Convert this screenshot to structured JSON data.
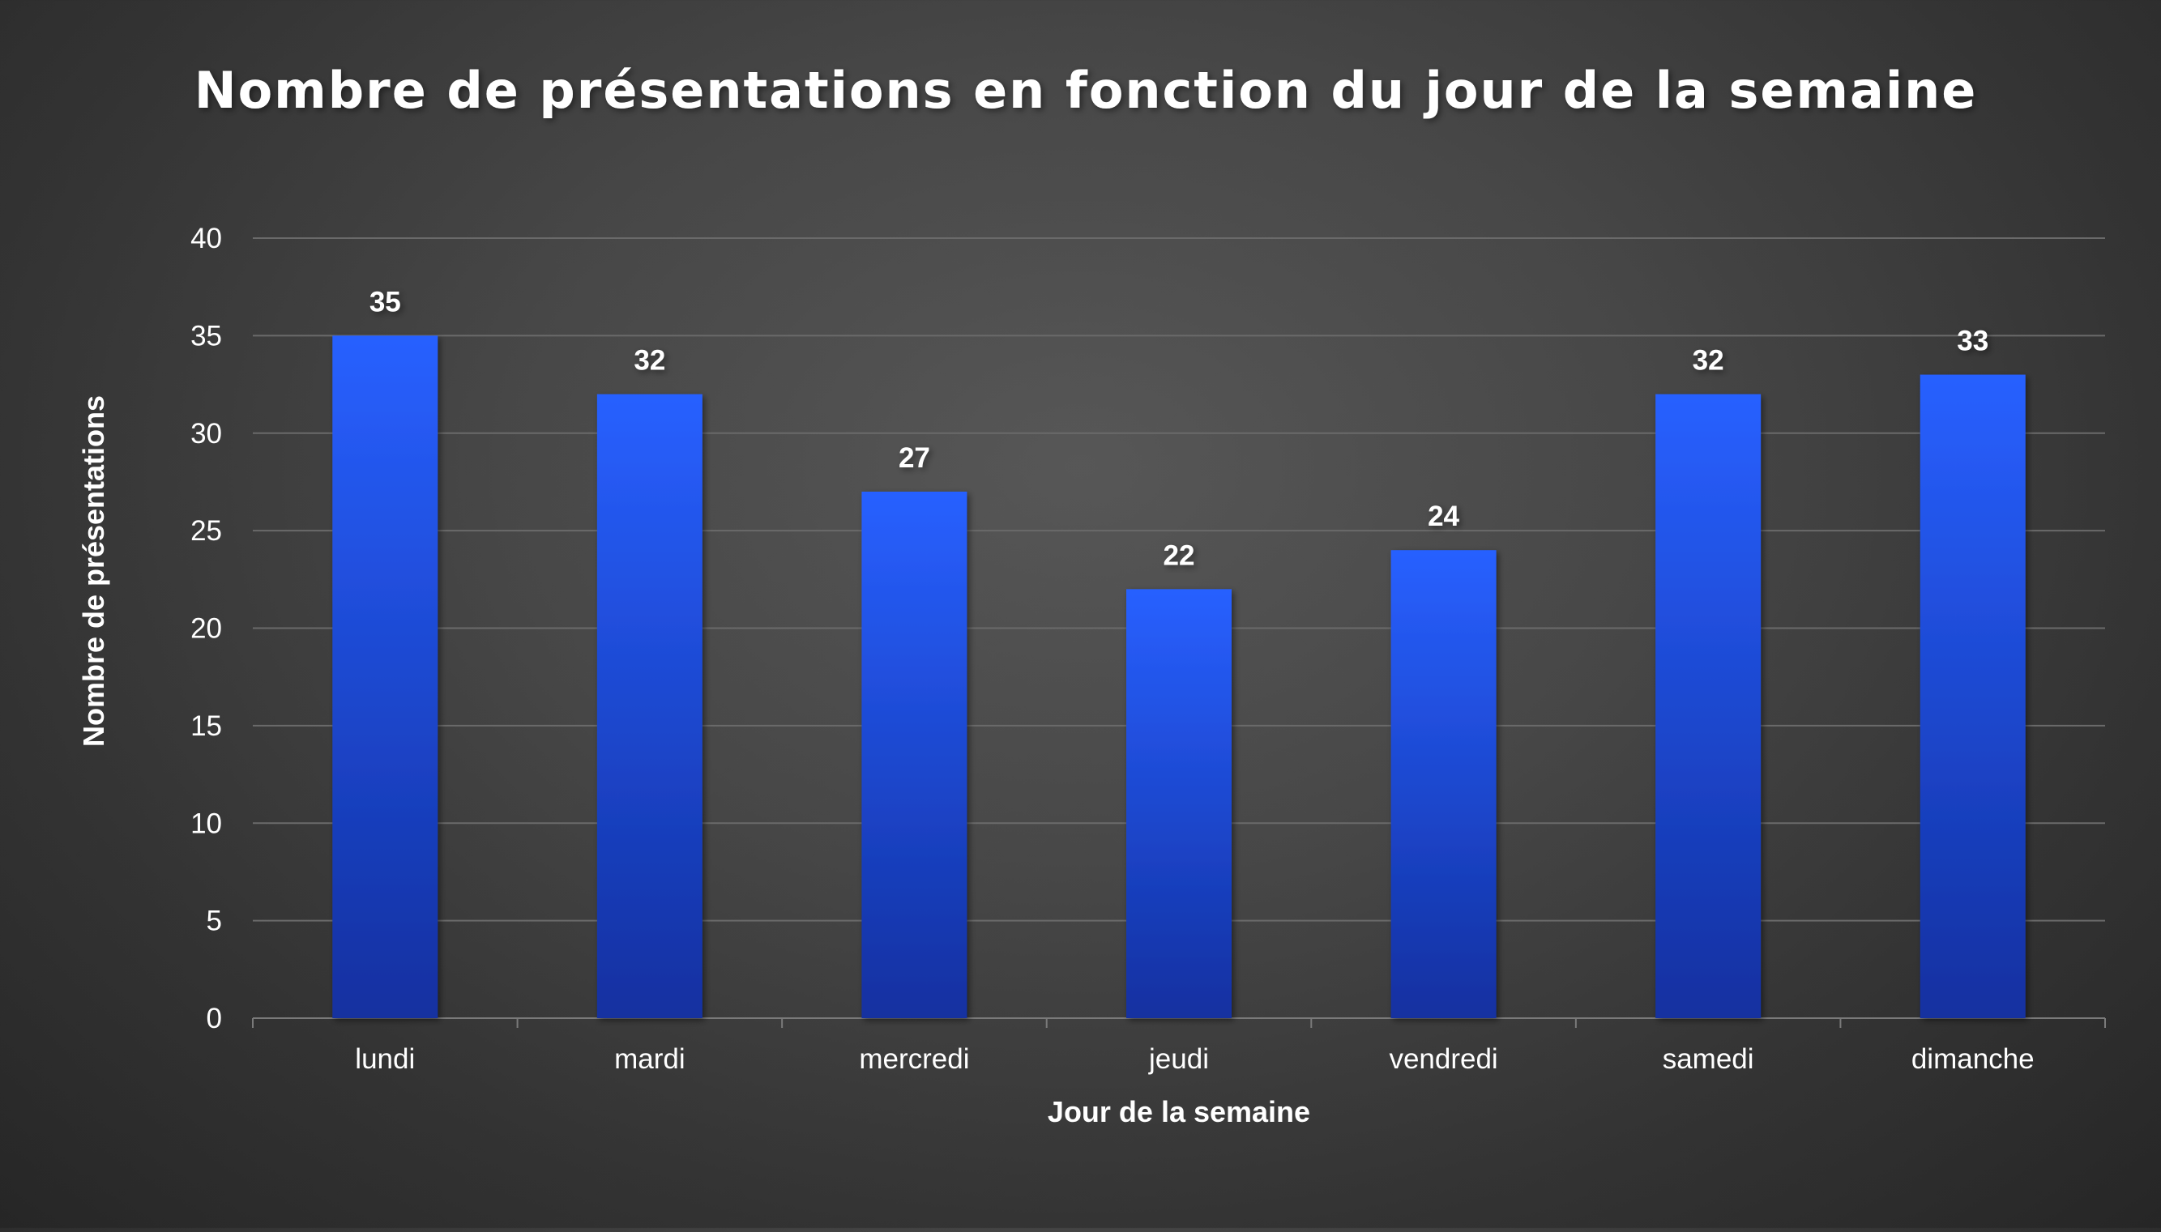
{
  "chart_data": {
    "type": "bar",
    "title": "Nombre de présentations en fonction du jour de la semaine",
    "xlabel": "Jour de la semaine",
    "ylabel": "Nombre de présentations",
    "categories": [
      "lundi",
      "mardi",
      "mercredi",
      "jeudi",
      "vendredi",
      "samedi",
      "dimanche"
    ],
    "values": [
      35,
      32,
      27,
      22,
      24,
      32,
      33
    ],
    "ylim": [
      0,
      40
    ],
    "yticks": [
      0,
      5,
      10,
      15,
      20,
      25,
      30,
      35,
      40
    ],
    "grid": true,
    "legend": "none",
    "colors": {
      "bar_top": "#2860ff",
      "bar_bottom": "#1230a0",
      "text": "#ffffff"
    }
  }
}
